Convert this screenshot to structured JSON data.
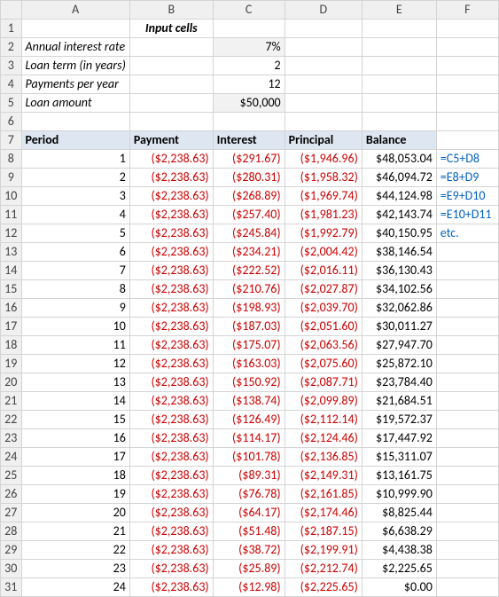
{
  "colHeaders": [
    "A",
    "B",
    "C",
    "D",
    "E",
    "F"
  ],
  "rowHeaders": [
    "1",
    "2",
    "3",
    "4",
    "5",
    "6",
    "7",
    "8",
    "9",
    "10",
    "11",
    "12",
    "13",
    "14",
    "15",
    "16",
    "17",
    "18",
    "19",
    "20",
    "21",
    "22",
    "23",
    "24",
    "25",
    "26",
    "27",
    "28",
    "29",
    "30",
    "31"
  ],
  "inputCellsTitle": "Input cells",
  "inputs": {
    "rateLabel": "Annual interest rate",
    "rateValue": "7%",
    "termLabel": "Loan term (in years)",
    "termValue": "2",
    "ppyLabel": "Payments per year",
    "ppyValue": "12",
    "amountLabel": "Loan amount",
    "amountValue": "$50,000"
  },
  "tableHeaders": {
    "period": "Period",
    "payment": "Payment",
    "interest": "Interest",
    "principal": "Principal",
    "balance": "Balance"
  },
  "formulas": [
    "=C5+D8",
    "=E8+D9",
    "=E9+D10",
    "=E10+D11",
    "etc."
  ],
  "rows": [
    {
      "period": "1",
      "payment": "($2,238.63)",
      "interest": "($291.67)",
      "principal": "($1,946.96)",
      "balance": "$48,053.04"
    },
    {
      "period": "2",
      "payment": "($2,238.63)",
      "interest": "($280.31)",
      "principal": "($1,958.32)",
      "balance": "$46,094.72"
    },
    {
      "period": "3",
      "payment": "($2,238.63)",
      "interest": "($268.89)",
      "principal": "($1,969.74)",
      "balance": "$44,124.98"
    },
    {
      "period": "4",
      "payment": "($2,238.63)",
      "interest": "($257.40)",
      "principal": "($1,981.23)",
      "balance": "$42,143.74"
    },
    {
      "period": "5",
      "payment": "($2,238.63)",
      "interest": "($245.84)",
      "principal": "($1,992.79)",
      "balance": "$40,150.95"
    },
    {
      "period": "6",
      "payment": "($2,238.63)",
      "interest": "($234.21)",
      "principal": "($2,004.42)",
      "balance": "$38,146.54"
    },
    {
      "period": "7",
      "payment": "($2,238.63)",
      "interest": "($222.52)",
      "principal": "($2,016.11)",
      "balance": "$36,130.43"
    },
    {
      "period": "8",
      "payment": "($2,238.63)",
      "interest": "($210.76)",
      "principal": "($2,027.87)",
      "balance": "$34,102.56"
    },
    {
      "period": "9",
      "payment": "($2,238.63)",
      "interest": "($198.93)",
      "principal": "($2,039.70)",
      "balance": "$32,062.86"
    },
    {
      "period": "10",
      "payment": "($2,238.63)",
      "interest": "($187.03)",
      "principal": "($2,051.60)",
      "balance": "$30,011.27"
    },
    {
      "period": "11",
      "payment": "($2,238.63)",
      "interest": "($175.07)",
      "principal": "($2,063.56)",
      "balance": "$27,947.70"
    },
    {
      "period": "12",
      "payment": "($2,238.63)",
      "interest": "($163.03)",
      "principal": "($2,075.60)",
      "balance": "$25,872.10"
    },
    {
      "period": "13",
      "payment": "($2,238.63)",
      "interest": "($150.92)",
      "principal": "($2,087.71)",
      "balance": "$23,784.40"
    },
    {
      "period": "14",
      "payment": "($2,238.63)",
      "interest": "($138.74)",
      "principal": "($2,099.89)",
      "balance": "$21,684.51"
    },
    {
      "period": "15",
      "payment": "($2,238.63)",
      "interest": "($126.49)",
      "principal": "($2,112.14)",
      "balance": "$19,572.37"
    },
    {
      "period": "16",
      "payment": "($2,238.63)",
      "interest": "($114.17)",
      "principal": "($2,124.46)",
      "balance": "$17,447.92"
    },
    {
      "period": "17",
      "payment": "($2,238.63)",
      "interest": "($101.78)",
      "principal": "($2,136.85)",
      "balance": "$15,311.07"
    },
    {
      "period": "18",
      "payment": "($2,238.63)",
      "interest": "($89.31)",
      "principal": "($2,149.31)",
      "balance": "$13,161.75"
    },
    {
      "period": "19",
      "payment": "($2,238.63)",
      "interest": "($76.78)",
      "principal": "($2,161.85)",
      "balance": "$10,999.90"
    },
    {
      "period": "20",
      "payment": "($2,238.63)",
      "interest": "($64.17)",
      "principal": "($2,174.46)",
      "balance": "$8,825.44"
    },
    {
      "period": "21",
      "payment": "($2,238.63)",
      "interest": "($51.48)",
      "principal": "($2,187.15)",
      "balance": "$6,638.29"
    },
    {
      "period": "22",
      "payment": "($2,238.63)",
      "interest": "($38.72)",
      "principal": "($2,199.91)",
      "balance": "$4,438.38"
    },
    {
      "period": "23",
      "payment": "($2,238.63)",
      "interest": "($25.89)",
      "principal": "($2,212.74)",
      "balance": "$2,225.65"
    },
    {
      "period": "24",
      "payment": "($2,238.63)",
      "interest": "($12.98)",
      "principal": "($2,225.65)",
      "balance": "$0.00"
    }
  ],
  "styling": {
    "highlightRowBg": "#dde6f1",
    "inputShadeBg": "#f2f2f2",
    "gridColor": "#d4d4d4",
    "negColor": "#cc0000",
    "formulaColor": "#0060c0",
    "headerBg": "#f0f0f0",
    "fontFamily": "Calibri",
    "fontSize": 14
  }
}
